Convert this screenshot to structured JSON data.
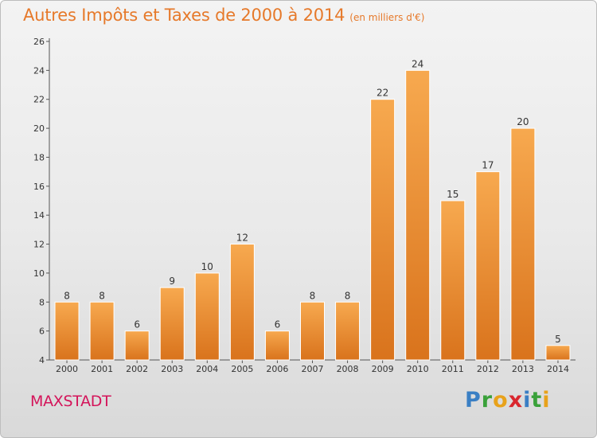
{
  "title": "Autres Impôts et Taxes de 2000 à 2014",
  "unit": "(en milliers d'€)",
  "city": "MAXSTADT",
  "logo": {
    "letters": [
      "P",
      "r",
      "o",
      "x",
      "i",
      "t",
      "i"
    ]
  },
  "colors": {
    "title": "#e6792a",
    "city": "#d4145a",
    "bar_light": "#f7a94f",
    "bar_dark": "#d9731c"
  },
  "chart_data": {
    "type": "bar",
    "categories": [
      "2000",
      "2001",
      "2002",
      "2003",
      "2004",
      "2005",
      "2006",
      "2007",
      "2008",
      "2009",
      "2010",
      "2011",
      "2012",
      "2013",
      "2014"
    ],
    "values": [
      8,
      8,
      6,
      9,
      10,
      12,
      6,
      8,
      8,
      22,
      24,
      15,
      17,
      20,
      5
    ],
    "title": "Autres Impôts et Taxes de 2000 à 2014",
    "xlabel": "",
    "ylabel": "",
    "ylim": [
      4,
      26
    ],
    "yticks": [
      4,
      6,
      8,
      10,
      12,
      14,
      16,
      18,
      20,
      22,
      24,
      26
    ],
    "grid": false,
    "data_labels": true
  }
}
